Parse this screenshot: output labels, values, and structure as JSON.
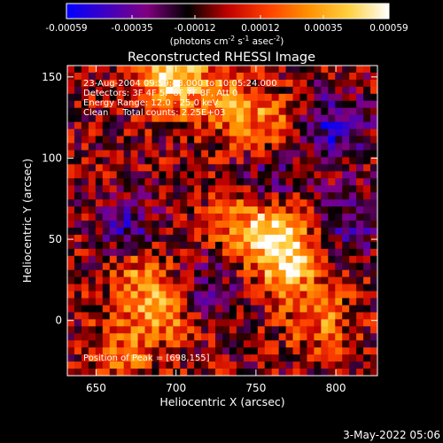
{
  "colorbar": {
    "ticks": [
      "-0.00059",
      "-0.00035",
      "-0.00012",
      "0.00012",
      "0.00035",
      "0.00059"
    ],
    "tick_values": [
      -0.00059,
      -0.00035,
      -0.00012,
      0.00012,
      0.00035,
      0.00059
    ],
    "range": [
      -0.00059,
      0.00059
    ],
    "units_main": "(photons cm",
    "units_exp1": "-2",
    "units_mid": " s",
    "units_exp2": "-1",
    "units_tail": " asec",
    "units_exp3": "-2",
    "units_close": ")",
    "colors": [
      "#0000ff",
      "#4000c0",
      "#800080",
      "#000000",
      "#c00000",
      "#ff4000",
      "#ff9000",
      "#ffd040",
      "#ffffff"
    ]
  },
  "chart_data": {
    "type": "heatmap",
    "title": "Reconstructed RHESSI Image",
    "xlabel": "Heliocentric X (arcsec)",
    "ylabel": "Heliocentric Y (arcsec)",
    "xlim": [
      632,
      826
    ],
    "ylim": [
      -34,
      157
    ],
    "xticks": [
      650,
      700,
      750,
      800
    ],
    "yticks": [
      0,
      50,
      100,
      150
    ],
    "grid": false,
    "peak": [
      698,
      155
    ],
    "bright_regions": [
      {
        "x": 698,
        "y": 150,
        "level": 0.00059
      },
      {
        "x": 770,
        "y": 35,
        "level": 0.00045
      },
      {
        "x": 762,
        "y": 55,
        "level": 0.0004
      },
      {
        "x": 790,
        "y": 0,
        "level": 0.0003
      },
      {
        "x": 690,
        "y": 5,
        "level": 0.00035
      },
      {
        "x": 675,
        "y": 30,
        "level": 0.0003
      },
      {
        "x": 730,
        "y": 135,
        "level": 0.0003
      },
      {
        "x": 755,
        "y": 120,
        "level": 0.0003
      },
      {
        "x": 740,
        "y": 60,
        "level": 0.00025
      },
      {
        "x": 665,
        "y": -20,
        "level": 0.00025
      }
    ],
    "dim_regions": [
      {
        "x": 800,
        "y": 120,
        "level": -0.0004
      },
      {
        "x": 760,
        "y": 90,
        "level": -0.00025
      },
      {
        "x": 670,
        "y": 55,
        "level": -0.0003
      },
      {
        "x": 720,
        "y": 20,
        "level": -0.0002
      },
      {
        "x": 810,
        "y": 60,
        "level": -0.00025
      }
    ]
  },
  "annotations": {
    "line1": "23-Aug-2004 09:59:48.000 to 10:05:24.000",
    "line2": "Detectors: 3F 4F 5F 6F 7F 8F, Att 0",
    "line3": "Energy Range: 12.0 - 25.0 keV",
    "line4": "Clean     Total counts: 2.25E+03",
    "peak_label": "Position of Peak = [698,155]"
  },
  "footer": {
    "date": "3-May-2022 05:06"
  }
}
